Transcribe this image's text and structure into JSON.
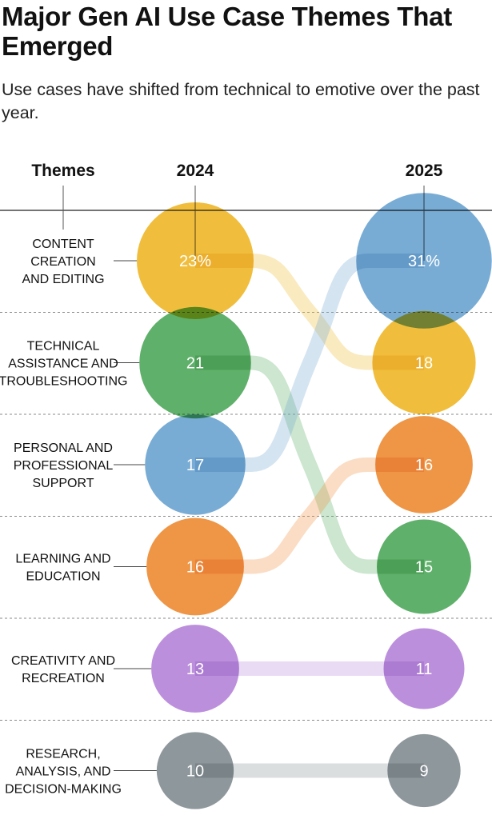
{
  "title": "Major Gen AI Use Case Themes That Emerged",
  "subtitle": "Use cases have shifted from technical to emotive over the past year.",
  "chart_data": {
    "type": "slope-bubble",
    "column_headers": {
      "themes": "Themes",
      "left": "2024",
      "right": "2025"
    },
    "x": [
      "2024",
      "2025"
    ],
    "value_unit": "%",
    "themes": [
      {
        "label_lines": [
          "CONTENT",
          "CREATION",
          "AND EDITING"
        ],
        "v2024": 23,
        "v2025": 18,
        "color": "#f0be3c",
        "label2024": "23%",
        "label2025": "18"
      },
      {
        "label_lines": [
          "TECHNICAL",
          "ASSISTANCE AND",
          "TROUBLESHOOTING"
        ],
        "v2024": 21,
        "v2025": 15,
        "color": "#5fb06a",
        "label2024": "21",
        "label2025": "15"
      },
      {
        "label_lines": [
          "PERSONAL AND",
          "PROFESSIONAL",
          "SUPPORT"
        ],
        "v2024": 17,
        "v2025": 31,
        "color": "#78acd4",
        "label2024": "17",
        "label2025": "31%"
      },
      {
        "label_lines": [
          "LEARNING AND",
          "EDUCATION"
        ],
        "v2024": 16,
        "v2025": 16,
        "color": "#ee9646",
        "label2024": "16",
        "label2025": "16"
      },
      {
        "label_lines": [
          "CREATIVITY AND",
          "RECREATION"
        ],
        "v2024": 13,
        "v2025": 11,
        "color": "#bc8fdc",
        "label2024": "13",
        "label2025": "11"
      },
      {
        "label_lines": [
          "RESEARCH,",
          "ANALYSIS, AND",
          "DECISION-MAKING"
        ],
        "v2024": 10,
        "v2025": 9,
        "color": "#8e979b",
        "label2024": "10",
        "label2025": "9"
      }
    ]
  }
}
